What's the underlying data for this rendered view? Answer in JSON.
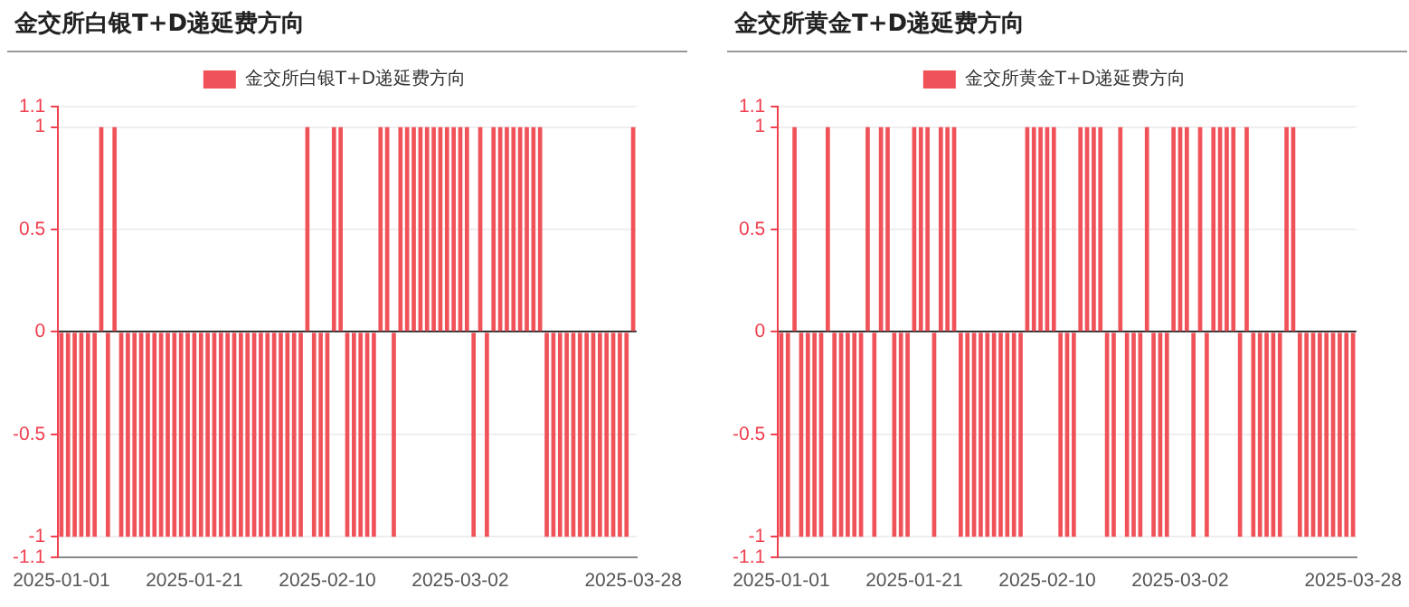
{
  "chart_data": [
    {
      "type": "bar",
      "title": "金交所白银T+D递延费方向",
      "categories": [
        "2025-01-01",
        null,
        null,
        null,
        null,
        null,
        null,
        null,
        null,
        null,
        null,
        null,
        null,
        null,
        null,
        null,
        null,
        null,
        null,
        null,
        "2025-01-21",
        null,
        null,
        null,
        null,
        null,
        null,
        null,
        null,
        null,
        null,
        null,
        null,
        null,
        null,
        null,
        null,
        null,
        null,
        null,
        "2025-02-10",
        null,
        null,
        null,
        null,
        null,
        null,
        null,
        null,
        null,
        null,
        null,
        null,
        null,
        null,
        null,
        null,
        null,
        null,
        null,
        "2025-03-02",
        null,
        null,
        null,
        null,
        null,
        null,
        null,
        null,
        null,
        null,
        null,
        null,
        null,
        null,
        null,
        null,
        null,
        null,
        null,
        null,
        null,
        null,
        null,
        null,
        null,
        "2025-03-28"
      ],
      "series": [
        {
          "name": "金交所白银T+D递延费方向",
          "color": "#f0525a",
          "values": [
            -1,
            -1,
            -1,
            -1,
            -1,
            -1,
            1,
            -1,
            1,
            -1,
            -1,
            -1,
            -1,
            -1,
            -1,
            -1,
            -1,
            -1,
            -1,
            -1,
            -1,
            -1,
            -1,
            -1,
            -1,
            -1,
            -1,
            -1,
            -1,
            -1,
            -1,
            -1,
            -1,
            -1,
            -1,
            -1,
            -1,
            1,
            -1,
            -1,
            -1,
            1,
            1,
            -1,
            -1,
            -1,
            -1,
            -1,
            1,
            1,
            -1,
            1,
            1,
            1,
            1,
            1,
            1,
            1,
            1,
            1,
            1,
            1,
            -1,
            1,
            -1,
            1,
            1,
            1,
            1,
            1,
            1,
            1,
            1,
            -1,
            -1,
            -1,
            -1,
            -1,
            -1,
            -1,
            -1,
            -1,
            -1,
            -1,
            -1,
            -1,
            1
          ]
        }
      ],
      "ylim": [
        -1.1,
        1.1
      ],
      "yticks": [
        -1.1,
        -1,
        -0.5,
        0,
        0.5,
        1,
        1.1
      ],
      "grid": "y",
      "legend": "top"
    },
    {
      "type": "bar",
      "title": "金交所黄金T+D递延费方向",
      "categories": [
        "2025-01-01",
        null,
        null,
        null,
        null,
        null,
        null,
        null,
        null,
        null,
        null,
        null,
        null,
        null,
        null,
        null,
        null,
        null,
        null,
        null,
        "2025-01-21",
        null,
        null,
        null,
        null,
        null,
        null,
        null,
        null,
        null,
        null,
        null,
        null,
        null,
        null,
        null,
        null,
        null,
        null,
        null,
        "2025-02-10",
        null,
        null,
        null,
        null,
        null,
        null,
        null,
        null,
        null,
        null,
        null,
        null,
        null,
        null,
        null,
        null,
        null,
        null,
        null,
        "2025-03-02",
        null,
        null,
        null,
        null,
        null,
        null,
        null,
        null,
        null,
        null,
        null,
        null,
        null,
        null,
        null,
        null,
        null,
        null,
        null,
        null,
        null,
        null,
        null,
        null,
        null,
        "2025-03-28"
      ],
      "series": [
        {
          "name": "金交所黄金T+D递延费方向",
          "color": "#f0525a",
          "values": [
            -1,
            -1,
            1,
            -1,
            -1,
            -1,
            -1,
            1,
            -1,
            -1,
            -1,
            -1,
            -1,
            1,
            -1,
            1,
            1,
            -1,
            -1,
            -1,
            1,
            1,
            1,
            -1,
            1,
            1,
            1,
            -1,
            -1,
            -1,
            -1,
            -1,
            -1,
            -1,
            -1,
            -1,
            -1,
            1,
            1,
            1,
            1,
            1,
            -1,
            -1,
            -1,
            1,
            1,
            1,
            1,
            -1,
            -1,
            1,
            -1,
            -1,
            -1,
            1,
            -1,
            -1,
            -1,
            1,
            1,
            1,
            -1,
            1,
            -1,
            1,
            1,
            1,
            1,
            -1,
            1,
            -1,
            -1,
            -1,
            -1,
            -1,
            1,
            1,
            -1,
            -1,
            -1,
            -1,
            -1,
            -1,
            -1,
            -1,
            -1
          ]
        }
      ],
      "ylim": [
        -1.1,
        1.1
      ],
      "yticks": [
        -1.1,
        -1,
        -0.5,
        0,
        0.5,
        1,
        1.1
      ],
      "grid": "y",
      "legend": "top"
    }
  ]
}
